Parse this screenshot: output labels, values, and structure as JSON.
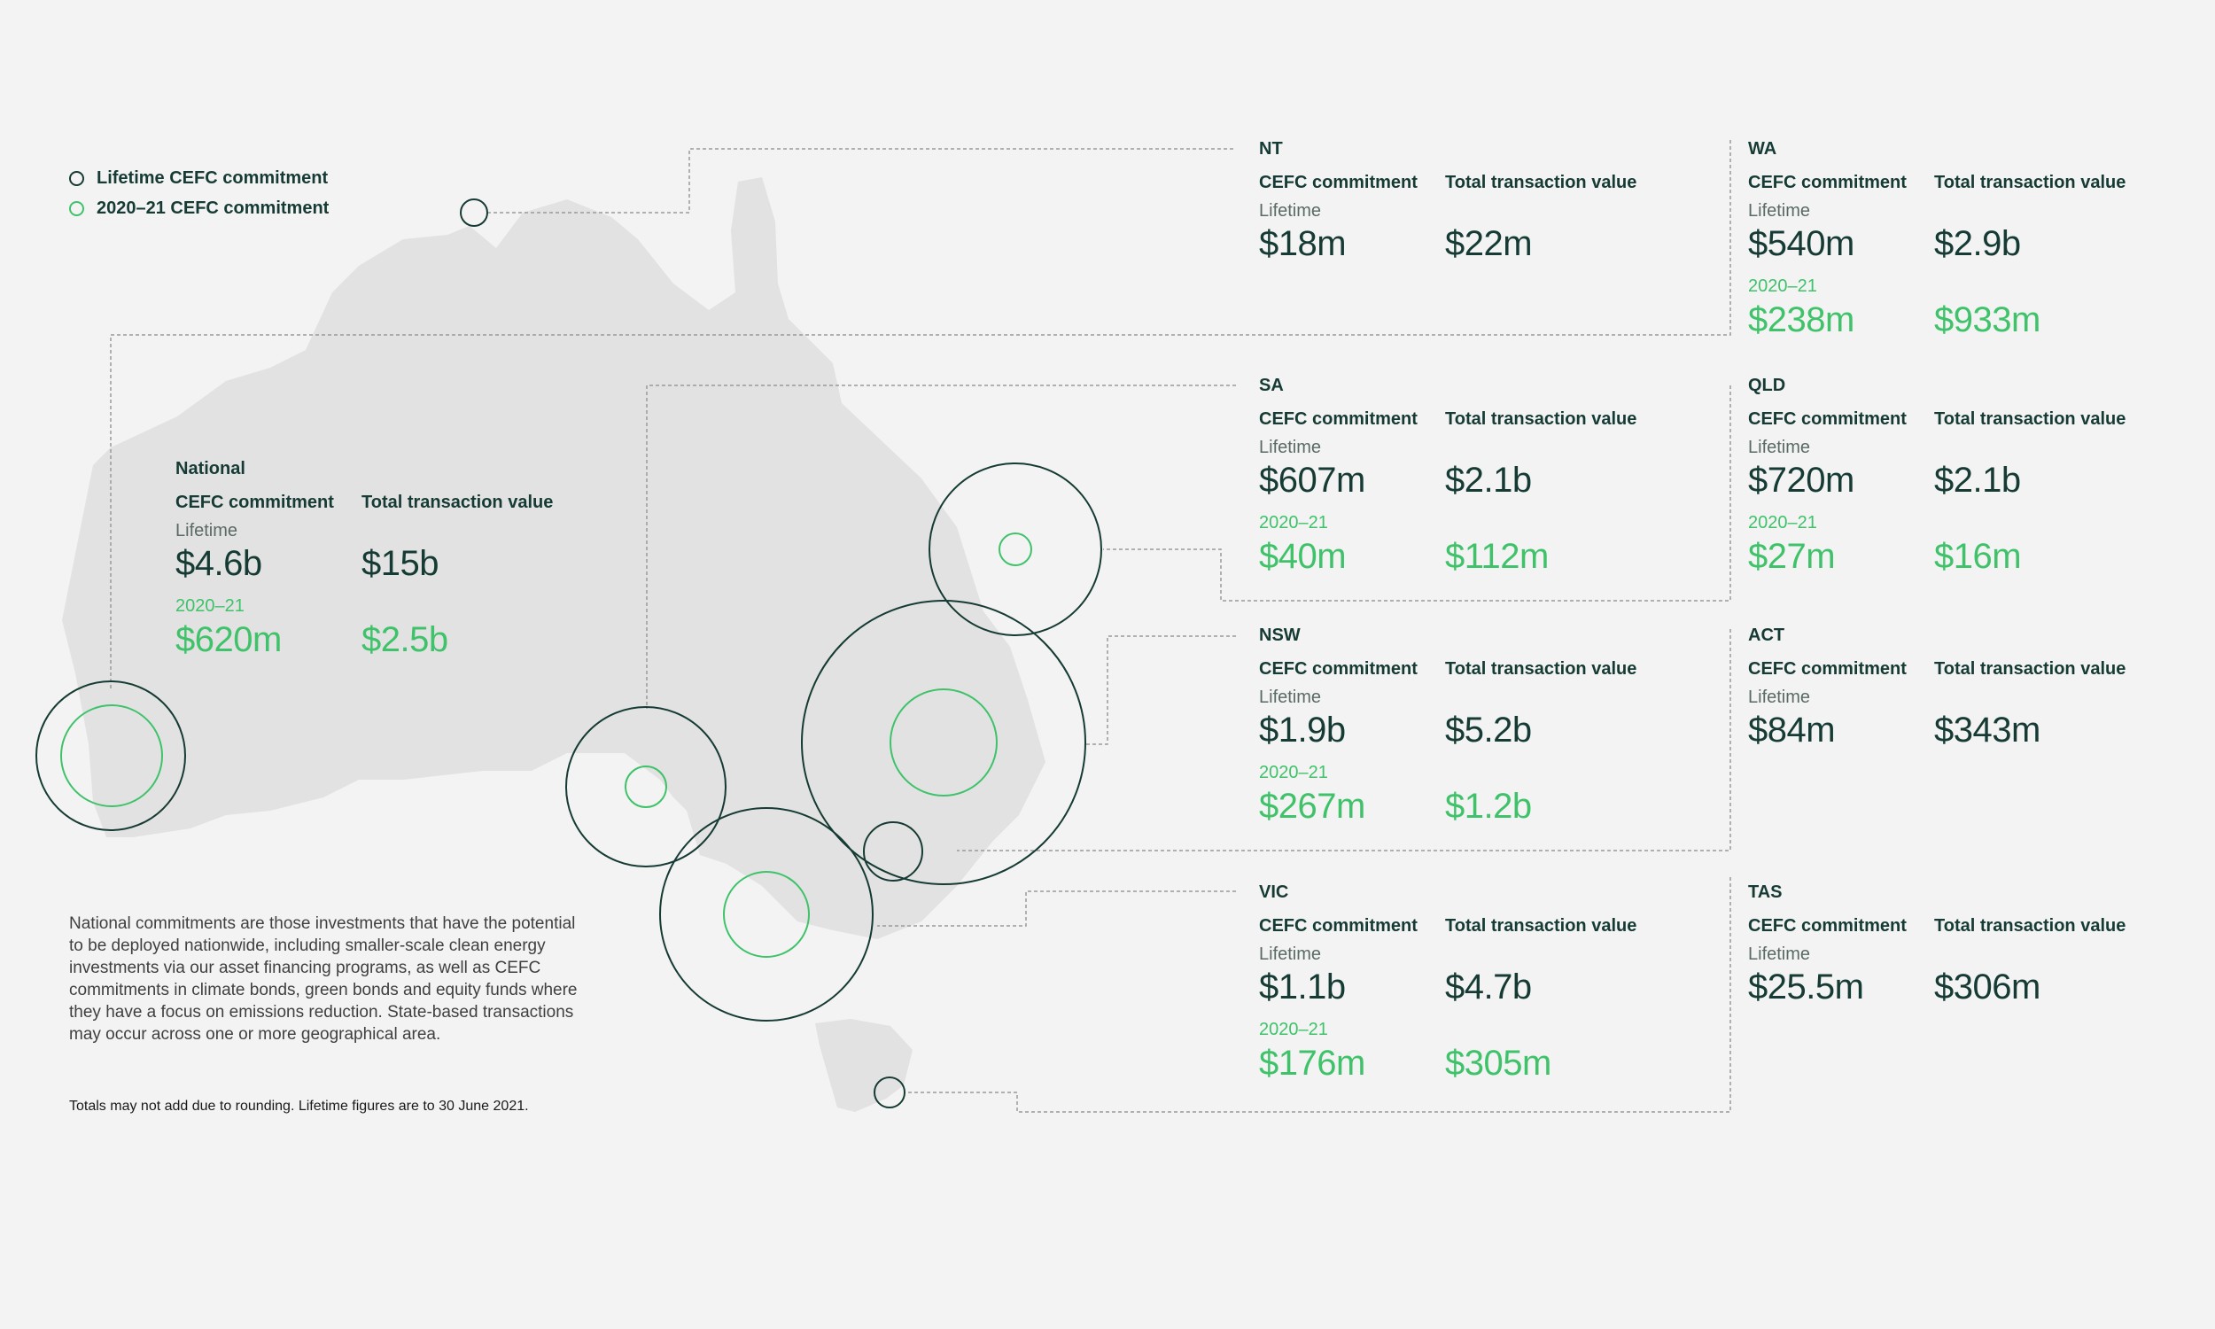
{
  "colors": {
    "lifetime": "#163b34",
    "fy2021": "#3fc26a",
    "land": "#e2e2e2",
    "leader": "#9a9a9a",
    "background": "#f3f3f3"
  },
  "legend": {
    "lifetime_label": "Lifetime CEFC commitment",
    "fy_label": "2020–21 CEFC commitment"
  },
  "labels": {
    "cefc": "CEFC commitment",
    "total": "Total transaction value",
    "lifetime": "Lifetime",
    "fy": "2020–21"
  },
  "regions": {
    "national": {
      "name": "National",
      "lifetime_cefc": "$4.6b",
      "lifetime_total": "$15b",
      "fy_cefc": "$620m",
      "fy_total": "$2.5b"
    },
    "nt": {
      "name": "NT",
      "lifetime_cefc": "$18m",
      "lifetime_total": "$22m"
    },
    "wa": {
      "name": "WA",
      "lifetime_cefc": "$540m",
      "lifetime_total": "$2.9b",
      "fy_cefc": "$238m",
      "fy_total": "$933m"
    },
    "sa": {
      "name": "SA",
      "lifetime_cefc": "$607m",
      "lifetime_total": "$2.1b",
      "fy_cefc": "$40m",
      "fy_total": "$112m"
    },
    "qld": {
      "name": "QLD",
      "lifetime_cefc": "$720m",
      "lifetime_total": "$2.1b",
      "fy_cefc": "$27m",
      "fy_total": "$16m"
    },
    "nsw": {
      "name": "NSW",
      "lifetime_cefc": "$1.9b",
      "lifetime_total": "$5.2b",
      "fy_cefc": "$267m",
      "fy_total": "$1.2b"
    },
    "act": {
      "name": "ACT",
      "lifetime_cefc": "$84m",
      "lifetime_total": "$343m"
    },
    "vic": {
      "name": "VIC",
      "lifetime_cefc": "$1.1b",
      "lifetime_total": "$4.7b",
      "fy_cefc": "$176m",
      "fy_total": "$305m"
    },
    "tas": {
      "name": "TAS",
      "lifetime_cefc": "$25.5m",
      "lifetime_total": "$306m"
    }
  },
  "note": "National commitments are those investments that have the potential to be deployed nationwide, including smaller-scale clean energy investments via our asset financing programs, as well as CEFC commitments in climate bonds, green bonds and equity funds where they have a focus on emissions reduction. State-based transactions may occur across one or more geographical area.",
  "footnote": "Totals may not add due to rounding. Lifetime figures are to 30 June 2021."
}
